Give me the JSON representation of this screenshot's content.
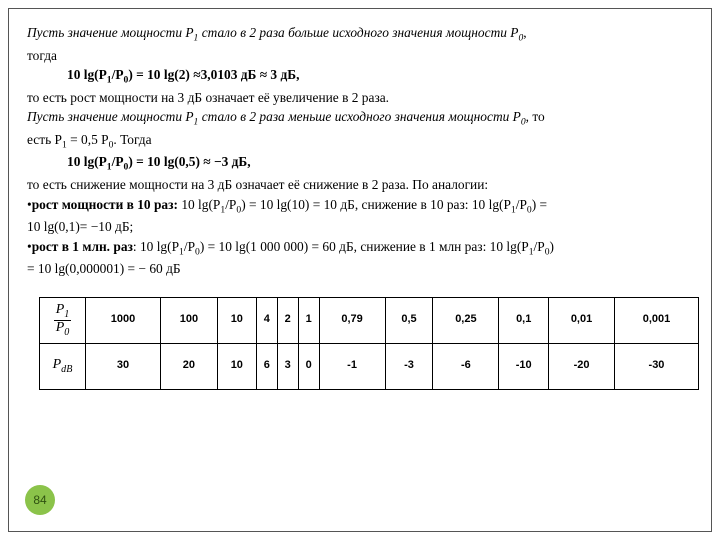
{
  "text": {
    "l1a": "Пусть значение мощности P",
    "l1b": " стало в 2 раза больше исходного значения мощности P",
    "l1c": ",",
    "l2": "тогда",
    "f1": "10 lg(P",
    "f1b": "/P",
    "f1c": ") = 10 lg(2) ≈3,0103 дБ ≈ 3 дБ,",
    "l3": "то есть рост мощности на 3 дБ означает её увеличение в 2 раза.",
    "l4a": "Пусть значение мощности P",
    "l4b": " стало в 2 раза меньше исходного значения мощности P",
    "l4c": ", то",
    "l5a": "есть P",
    "l5b": " = 0,5 P",
    "l5c": ". Тогда",
    "f2": "10 lg(P",
    "f2b": "/P",
    "f2c": ") = 10 lg(0,5) ≈ −3 дБ,",
    "l6": "то есть снижение мощности на 3 дБ означает её снижение в 2 раза. По аналогии:",
    "b1a": "рост мощности в 10 раз:",
    "b1b": " 10 lg(P",
    "b1c": "/P",
    "b1d": ") = 10 lg(10) = 10 дБ, снижение в 10 раз: 10 lg(P",
    "b1e": "/P",
    "b1f": ") =",
    "b1g": " 10 lg(0,1)= −10 дБ;",
    "b2a": "рост в 1 млн. раз",
    "b2b": ": 10 lg(P",
    "b2c": "/P",
    "b2d": ") = 10 lg(1 000 000) = 60 дБ, снижение в 1 млн раз: 10 lg(P",
    "b2e": "/P",
    "b2f": ")",
    "b2g": " = 10 lg(0,000001) = − 60 дБ",
    "s1": "1",
    "s0": "0"
  },
  "table": {
    "head1_num": "P",
    "head1_num_sub": "1",
    "head1_den": "P",
    "head1_den_sub": "0",
    "head2": "P",
    "head2_sub": "dB",
    "row1": [
      "1000",
      "100",
      "10",
      "4",
      "2",
      "1",
      "0,79",
      "0,5",
      "0,25",
      "0,1",
      "0,01",
      "0,001"
    ],
    "row2": [
      "30",
      "20",
      "10",
      "6",
      "3",
      "0",
      "-1",
      "-3",
      "-6",
      "-10",
      "-20",
      "-30"
    ]
  },
  "page": "84",
  "colors": {
    "border": "#555555",
    "badge_bg": "#8bc34a",
    "badge_fg": "#2e5010"
  }
}
